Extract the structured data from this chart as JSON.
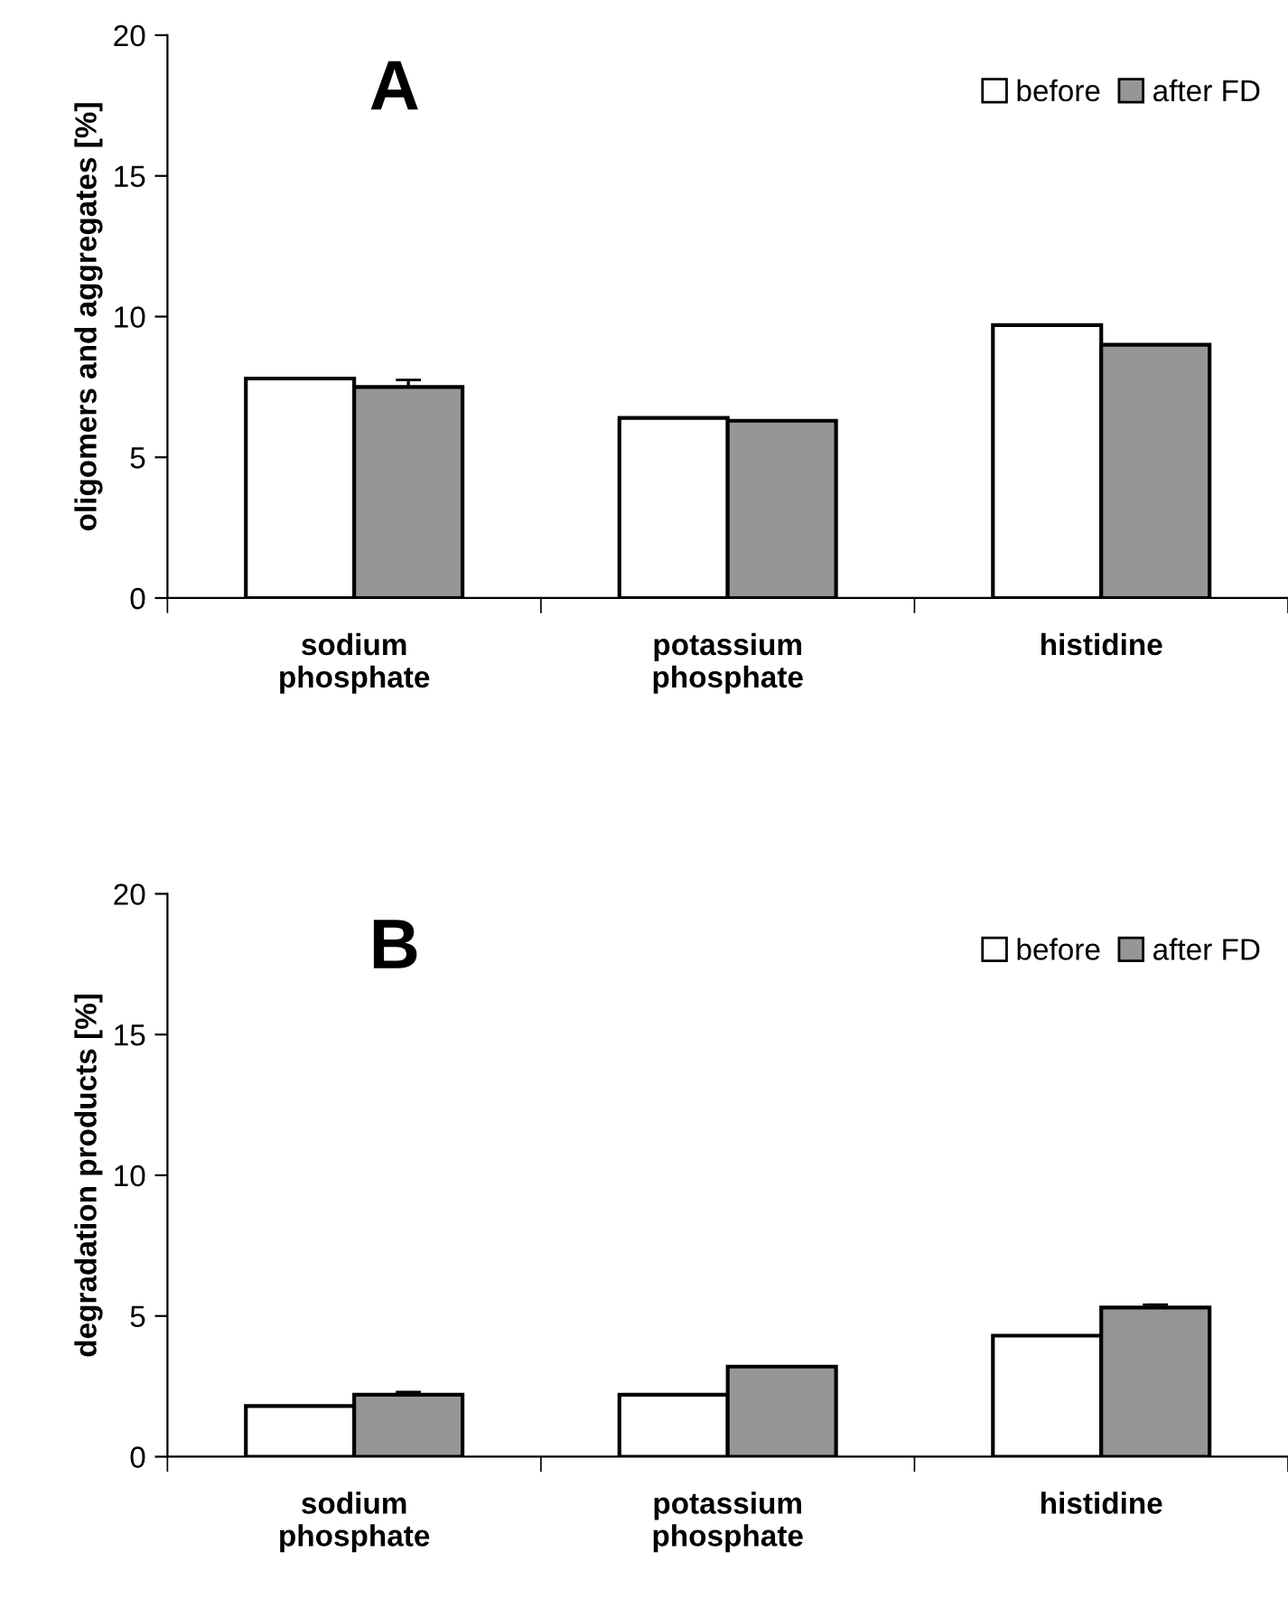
{
  "chart_data": [
    {
      "type": "bar",
      "ylabel": "oligomers and aggregates [%]",
      "annotations": [
        "A"
      ],
      "categories": [
        "sodium\nphosphate",
        "potassium\nphosphate",
        "histidine"
      ],
      "series": [
        {
          "name": "before",
          "color": "#ffffff",
          "values": [
            7.8,
            6.4,
            9.7
          ]
        },
        {
          "name": "after FD",
          "color": "#969696",
          "values": [
            7.5,
            6.3,
            9.0
          ],
          "errors": [
            0.25,
            null,
            null
          ]
        }
      ],
      "ylim": [
        0,
        20
      ],
      "yticks": [
        0,
        5,
        10,
        15,
        20
      ],
      "grid": false,
      "legend": "top right"
    },
    {
      "type": "bar",
      "ylabel": "degradation products [%]",
      "annotations": [
        "B"
      ],
      "categories": [
        "sodium\nphosphate",
        "potassium\nphosphate",
        "histidine"
      ],
      "series": [
        {
          "name": "before",
          "color": "#ffffff",
          "values": [
            1.8,
            2.2,
            4.3
          ]
        },
        {
          "name": "after FD",
          "color": "#969696",
          "values": [
            2.2,
            3.2,
            5.3
          ],
          "errors": [
            0.1,
            null,
            0.1
          ]
        }
      ],
      "ylim": [
        0,
        20
      ],
      "yticks": [
        0,
        5,
        10,
        15,
        20
      ],
      "grid": false,
      "legend": "top right"
    }
  ]
}
